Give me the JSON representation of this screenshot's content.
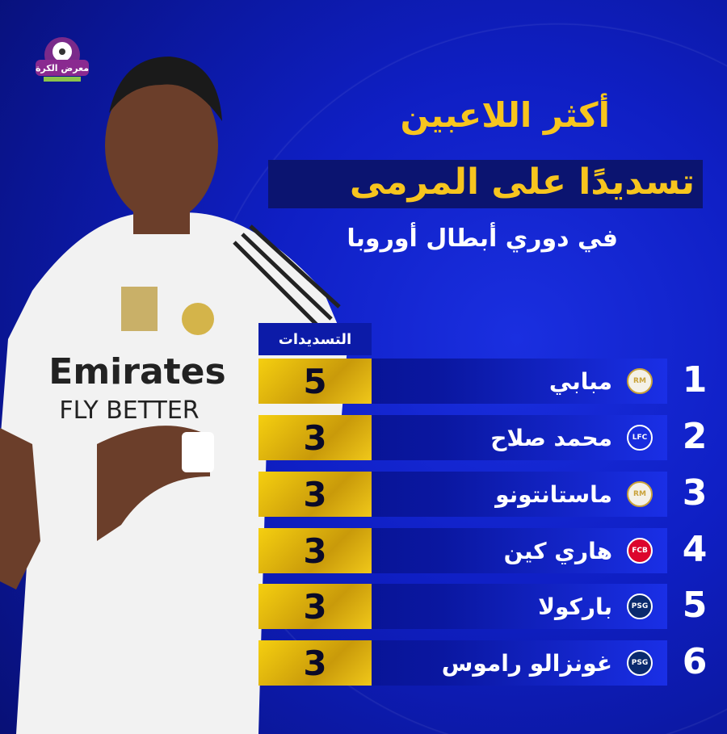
{
  "logo": {
    "text": "معرض الكرة"
  },
  "title": {
    "line1": "أكثر اللاعبين",
    "line2": "تسديدًا على المرمى",
    "subtitle": "في دوري أبطال أوروبا"
  },
  "table": {
    "column_header": "التسديدات",
    "rows": [
      {
        "rank": "1",
        "name": "مبابي",
        "score": "5",
        "club_icon": "real-madrid-crest"
      },
      {
        "rank": "2",
        "name": "محمد صلاح",
        "score": "3",
        "club_icon": "liverpool-crest"
      },
      {
        "rank": "3",
        "name": "ماستانتونو",
        "score": "3",
        "club_icon": "real-madrid-crest"
      },
      {
        "rank": "4",
        "name": "هاري كين",
        "score": "3",
        "club_icon": "bayern-munich-crest"
      },
      {
        "rank": "5",
        "name": "باركولا",
        "score": "3",
        "club_icon": "psg-crest"
      },
      {
        "rank": "6",
        "name": "غونزالو راموس",
        "score": "3",
        "club_icon": "psg-crest"
      }
    ]
  },
  "colors": {
    "accent_yellow": "#f7c51e",
    "background_blue": "#0f1fc4",
    "score_gold": "#e8c010"
  }
}
